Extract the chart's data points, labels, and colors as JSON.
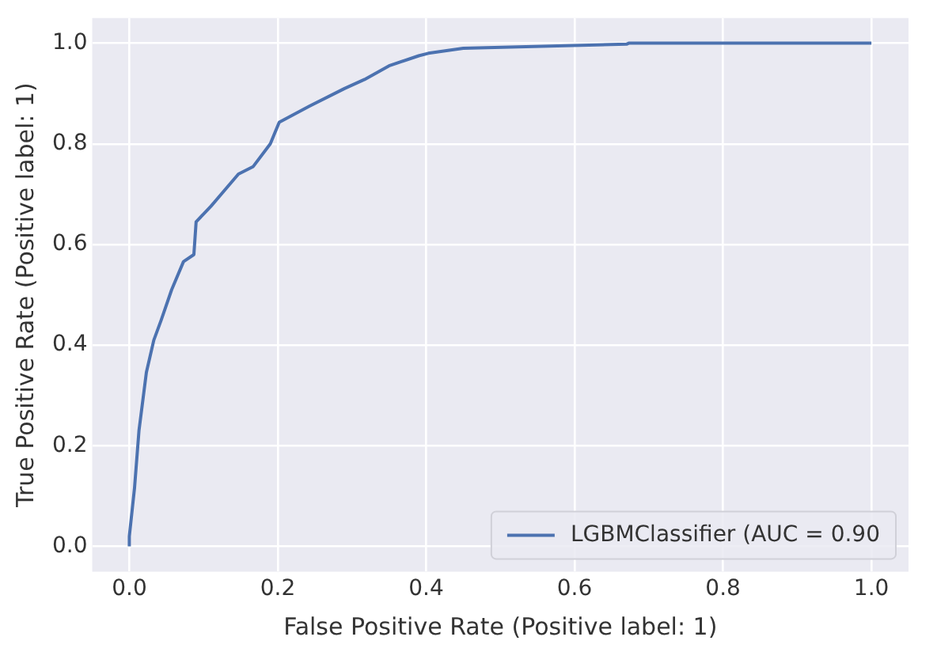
{
  "chart_data": {
    "type": "line",
    "xlabel": "False Positive Rate (Positive label: 1)",
    "ylabel": "True Positive Rate (Positive label: 1)",
    "xlim": [
      -0.05,
      1.05
    ],
    "ylim": [
      -0.05,
      1.05
    ],
    "xticks": [
      {
        "value": 0,
        "label": "0.0"
      },
      0.2,
      0.4,
      0.6,
      0.8,
      {
        "value": 1,
        "label": "1.0"
      }
    ],
    "yticks": [
      {
        "value": 0,
        "label": "0.0"
      },
      0.2,
      0.4,
      0.6,
      0.8,
      {
        "value": 1,
        "label": "1.0"
      }
    ],
    "grid": true,
    "legend": "bottom right",
    "marker": "none",
    "line_style": "solid",
    "series": [
      {
        "name": "LGBMClassifier (AUC = 0.90",
        "color": "#4c72b0",
        "x": [
          0,
          0,
          0.007,
          0.013,
          0.023,
          0.033,
          0.043,
          0.057,
          0.073,
          0.087,
          0.09,
          0.11,
          0.147,
          0.167,
          0.19,
          0.202,
          0.243,
          0.29,
          0.317,
          0.35,
          0.39,
          0.403,
          0.45,
          0.67,
          0.673,
          1
        ],
        "values": [
          0,
          0.02,
          0.116,
          0.23,
          0.346,
          0.41,
          0.45,
          0.51,
          0.566,
          0.58,
          0.645,
          0.676,
          0.74,
          0.755,
          0.8,
          0.843,
          0.875,
          0.91,
          0.928,
          0.955,
          0.975,
          0.98,
          0.99,
          0.998,
          1,
          1
        ]
      }
    ]
  }
}
